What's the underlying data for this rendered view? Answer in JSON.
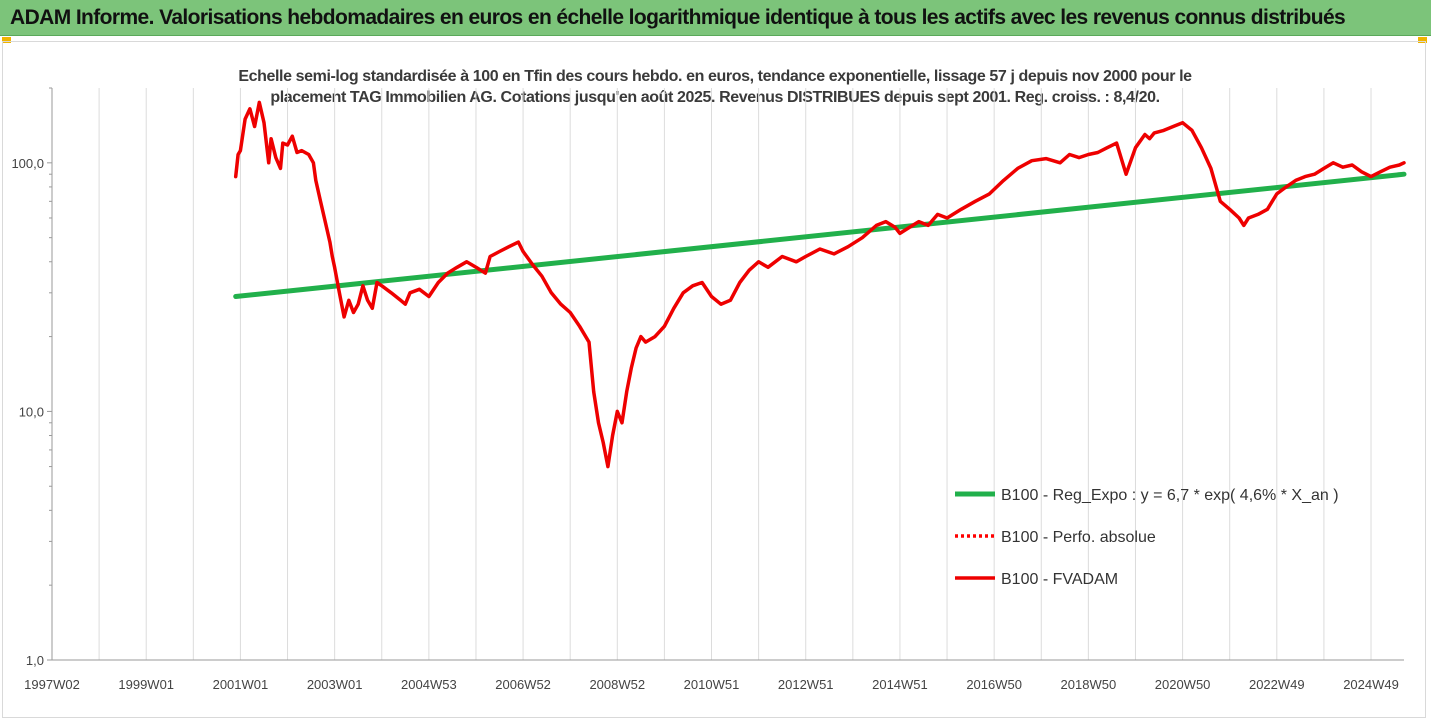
{
  "banner": {
    "title": "ADAM Informe. Valorisations hebdomadaires en euros en échelle logarithmique identique à tous les actifs avec les revenus connus distribués"
  },
  "chart_data": {
    "type": "line",
    "title": "Echelle semi-log standardisée à 100 en Tfin des cours hebdo. en euros, tendance exponentielle, lissage 57 j depuis nov 2000 pour le placement TAG Immobilien AG. Cotations jusqu'en août 2025. Revenus DISTRIBUES depuis sept 2001. Reg. croiss. : 8,4/20.",
    "xlabel": "",
    "ylabel": "",
    "y_scale": "log",
    "ylim": [
      1,
      200
    ],
    "y_ticks": [
      {
        "value": 1,
        "label": "1,0"
      },
      {
        "value": 10,
        "label": "10,0"
      },
      {
        "value": 100,
        "label": "100,0"
      }
    ],
    "x_range": [
      1997.0,
      2025.7
    ],
    "x_ticks": [
      {
        "x": 1997.0,
        "label": "1997W02"
      },
      {
        "x": 1999.0,
        "label": "1999W01"
      },
      {
        "x": 2001.0,
        "label": "2001W01"
      },
      {
        "x": 2003.0,
        "label": "2003W01"
      },
      {
        "x": 2005.0,
        "label": "2004W53"
      },
      {
        "x": 2007.0,
        "label": "2006W52"
      },
      {
        "x": 2009.0,
        "label": "2008W52"
      },
      {
        "x": 2011.0,
        "label": "2010W51"
      },
      {
        "x": 2013.0,
        "label": "2012W51"
      },
      {
        "x": 2015.0,
        "label": "2014W51"
      },
      {
        "x": 2017.0,
        "label": "2016W50"
      },
      {
        "x": 2019.0,
        "label": "2018W50"
      },
      {
        "x": 2021.0,
        "label": "2020W50"
      },
      {
        "x": 2023.0,
        "label": "2022W49"
      },
      {
        "x": 2025.0,
        "label": "2024W49"
      }
    ],
    "grid": "vertical",
    "legend_position": "lower-right",
    "series": [
      {
        "name": "B100 - Reg_Expo : y = 6,7 * exp( 4,6% *  X_an )",
        "color": "#21b04b",
        "style": "solid",
        "x": [
          2000.9,
          2025.7
        ],
        "y": [
          29,
          90
        ]
      },
      {
        "name": "B100 - Perfo. absolue",
        "color": "#ff0000",
        "style": "dotted",
        "x": [],
        "y": []
      },
      {
        "name": "B100 - FVADAM",
        "color": "#ee0000",
        "style": "solid",
        "x": [
          2000.9,
          2000.95,
          2001.0,
          2001.1,
          2001.2,
          2001.3,
          2001.4,
          2001.5,
          2001.6,
          2001.65,
          2001.75,
          2001.85,
          2001.9,
          2002.0,
          2002.1,
          2002.2,
          2002.3,
          2002.45,
          2002.55,
          2002.6,
          2002.7,
          2002.8,
          2002.9,
          2002.95,
          2003.0,
          2003.1,
          2003.2,
          2003.3,
          2003.4,
          2003.5,
          2003.6,
          2003.7,
          2003.8,
          2003.9,
          2004.0,
          2004.2,
          2004.4,
          2004.5,
          2004.6,
          2004.8,
          2005.0,
          2005.2,
          2005.4,
          2005.6,
          2005.8,
          2006.0,
          2006.2,
          2006.3,
          2006.5,
          2006.7,
          2006.9,
          2007.0,
          2007.2,
          2007.4,
          2007.6,
          2007.8,
          2008.0,
          2008.2,
          2008.4,
          2008.5,
          2008.6,
          2008.7,
          2008.8,
          2008.9,
          2009.0,
          2009.1,
          2009.2,
          2009.3,
          2009.4,
          2009.5,
          2009.6,
          2009.8,
          2010.0,
          2010.2,
          2010.4,
          2010.6,
          2010.8,
          2011.0,
          2011.2,
          2011.4,
          2011.6,
          2011.8,
          2012.0,
          2012.2,
          2012.5,
          2012.8,
          2013.0,
          2013.3,
          2013.6,
          2013.9,
          2014.2,
          2014.5,
          2014.7,
          2014.9,
          2015.0,
          2015.2,
          2015.4,
          2015.6,
          2015.8,
          2016.0,
          2016.3,
          2016.6,
          2016.9,
          2017.2,
          2017.5,
          2017.8,
          2018.1,
          2018.4,
          2018.6,
          2018.8,
          2019.0,
          2019.2,
          2019.4,
          2019.6,
          2019.8,
          2020.0,
          2020.2,
          2020.3,
          2020.4,
          2020.6,
          2020.8,
          2021.0,
          2021.2,
          2021.4,
          2021.6,
          2021.8,
          2022.0,
          2022.2,
          2022.3,
          2022.4,
          2022.6,
          2022.8,
          2023.0,
          2023.2,
          2023.4,
          2023.6,
          2023.8,
          2024.0,
          2024.2,
          2024.4,
          2024.6,
          2024.8,
          2025.0,
          2025.2,
          2025.4,
          2025.6,
          2025.7
        ],
        "y": [
          88,
          108,
          112,
          150,
          165,
          140,
          175,
          145,
          100,
          125,
          105,
          95,
          120,
          118,
          128,
          110,
          112,
          108,
          100,
          85,
          70,
          58,
          48,
          42,
          38,
          30,
          24,
          28,
          25,
          27,
          32,
          28,
          26,
          33,
          32,
          30,
          28,
          27,
          30,
          31,
          29,
          33,
          36,
          38,
          40,
          38,
          36,
          42,
          44,
          46,
          48,
          44,
          39,
          35,
          30,
          27,
          25,
          22,
          19,
          12,
          9,
          7.5,
          6.0,
          8,
          10,
          9,
          12,
          15,
          18,
          20,
          19,
          20,
          22,
          26,
          30,
          32,
          33,
          29,
          27,
          28,
          33,
          37,
          40,
          38,
          42,
          40,
          42,
          45,
          43,
          46,
          50,
          56,
          58,
          55,
          52,
          55,
          58,
          56,
          62,
          60,
          65,
          70,
          75,
          85,
          95,
          102,
          104,
          100,
          108,
          105,
          108,
          110,
          115,
          120,
          90,
          115,
          130,
          125,
          132,
          135,
          140,
          145,
          135,
          115,
          95,
          70,
          65,
          60,
          56,
          60,
          62,
          65,
          75,
          80,
          85,
          88,
          90,
          95,
          100,
          96,
          98,
          92,
          88,
          92,
          96,
          98,
          100
        ]
      }
    ]
  }
}
